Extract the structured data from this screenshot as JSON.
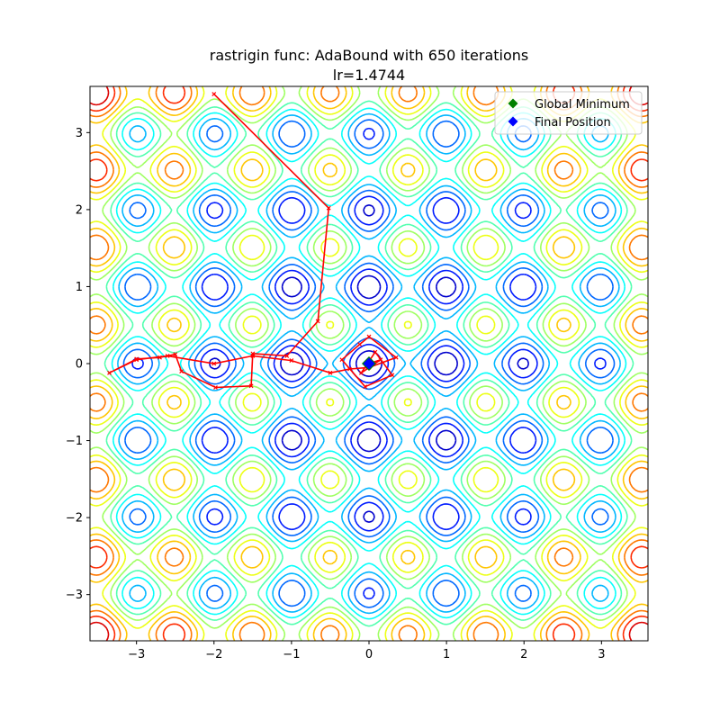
{
  "chart_data": {
    "type": "contour",
    "title": "rastrigin func: AdaBound with 650 iterations",
    "subtitle": "lr=1.4744",
    "xlim": [
      -3.6,
      3.6
    ],
    "ylim": [
      -3.6,
      3.6
    ],
    "x_ticks": [
      -3,
      -2,
      -1,
      0,
      1,
      2,
      3
    ],
    "y_ticks": [
      -3,
      -2,
      -1,
      0,
      1,
      2,
      3
    ],
    "x_tick_labels": [
      "−3",
      "−2",
      "−1",
      "0",
      "1",
      "2",
      "3"
    ],
    "y_tick_labels": [
      "−3",
      "−2",
      "−1",
      "0",
      "1",
      "2",
      "3"
    ],
    "grid": false,
    "colormap": "jet",
    "function": "rastrigin",
    "legend": {
      "placement": "upper-right",
      "entries": [
        {
          "label": "Global Minimum",
          "marker": "diamond",
          "color": "#008000"
        },
        {
          "label": "Final Position",
          "marker": "diamond",
          "color": "#0000ff"
        }
      ]
    },
    "path_color": "#ff0000",
    "optimizer_path": [
      [
        -2.0,
        3.5
      ],
      [
        -0.52,
        2.02
      ],
      [
        -0.66,
        0.55
      ],
      [
        -1.06,
        0.1
      ],
      [
        -1.5,
        0.13
      ],
      [
        -1.52,
        -0.29
      ],
      [
        -1.98,
        -0.31
      ],
      [
        -2.42,
        -0.1
      ],
      [
        -2.5,
        0.12
      ],
      [
        -2.7,
        0.08
      ],
      [
        -3.0,
        0.06
      ],
      [
        -3.35,
        -0.12
      ],
      [
        -3.0,
        0.05
      ],
      [
        -2.6,
        0.1
      ],
      [
        -2.0,
        0.0
      ],
      [
        -1.5,
        0.1
      ],
      [
        -1.0,
        0.04
      ],
      [
        -0.5,
        -0.12
      ],
      [
        -0.25,
        -0.07
      ],
      [
        0.0,
        -0.05
      ],
      [
        0.35,
        0.08
      ],
      [
        0.0,
        0.35
      ],
      [
        -0.12,
        0.25
      ],
      [
        -0.35,
        0.05
      ],
      [
        -0.05,
        -0.3
      ],
      [
        0.3,
        -0.15
      ],
      [
        0.08,
        0.15
      ],
      [
        -0.1,
        -0.12
      ],
      [
        0.15,
        0.05
      ],
      [
        0.0,
        0.0
      ]
    ],
    "global_minimum": [
      0,
      0
    ],
    "final_position": [
      0.0,
      0.0
    ]
  }
}
